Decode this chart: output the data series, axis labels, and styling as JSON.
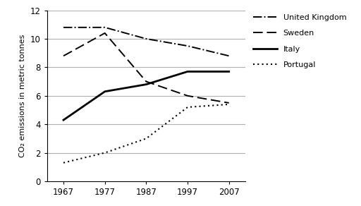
{
  "years": [
    1967,
    1977,
    1987,
    1997,
    2007
  ],
  "united_kingdom": [
    10.8,
    10.8,
    10.0,
    9.5,
    8.8
  ],
  "sweden": [
    8.8,
    10.4,
    7.0,
    6.0,
    5.5
  ],
  "italy": [
    4.3,
    6.3,
    6.8,
    7.7,
    7.7
  ],
  "portugal": [
    1.3,
    2.0,
    3.0,
    5.2,
    5.4
  ],
  "ylabel": "CO₂ emissions in metric tonnes",
  "ylim": [
    0,
    12
  ],
  "yticks": [
    0,
    2,
    4,
    6,
    8,
    10,
    12
  ],
  "xticks": [
    1967,
    1977,
    1987,
    1997,
    2007
  ],
  "legend_labels": [
    "United Kingdom",
    "Sweden",
    "Italy",
    "Portugal"
  ],
  "line_color": "#000000",
  "grid_color": "#b0b0b0",
  "background_color": "#ffffff",
  "xlim": [
    1963,
    2011
  ]
}
